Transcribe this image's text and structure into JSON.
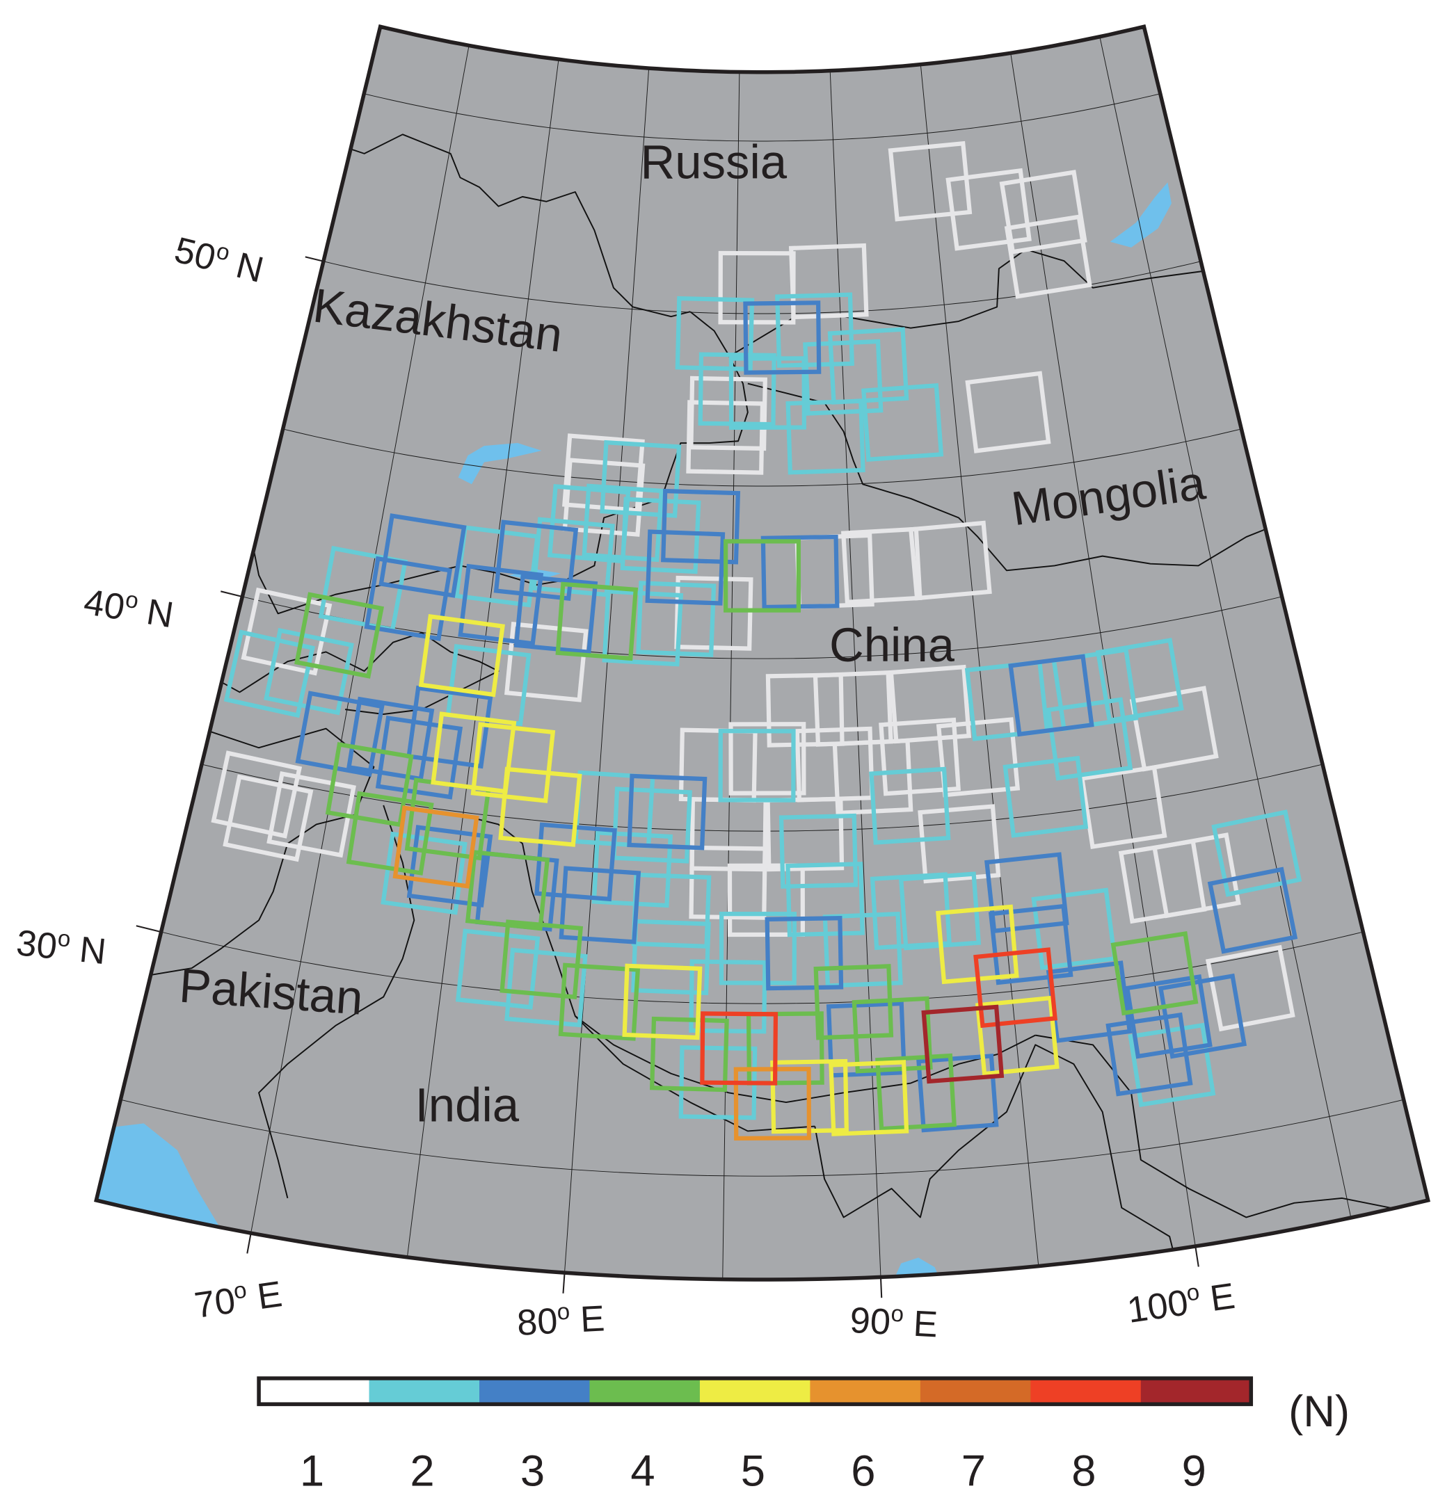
{
  "map": {
    "background_color": "#a7a9ac",
    "water_color": "#6fc0ec",
    "countries": {
      "russia": "Russia",
      "kazakhstan": "Kazakhstan",
      "mongolia": "Mongolia",
      "china": "China",
      "pakistan": "Pakistan",
      "india": "India"
    },
    "lat_labels": [
      {
        "value": 30,
        "text": "30",
        "deg": "o",
        "hemi": " N"
      },
      {
        "value": 40,
        "text": "40",
        "deg": "o",
        "hemi": " N"
      },
      {
        "value": 50,
        "text": "50",
        "deg": "o",
        "hemi": " N"
      }
    ],
    "lon_labels": [
      {
        "value": 70,
        "text": "70",
        "deg": "o",
        "hemi": " E"
      },
      {
        "value": 80,
        "text": "80",
        "deg": "o",
        "hemi": " E"
      },
      {
        "value": 90,
        "text": "90",
        "deg": "o",
        "hemi": " E"
      },
      {
        "value": 100,
        "text": "100",
        "deg": "o",
        "hemi": " E"
      }
    ],
    "graticule": {
      "lon_step": 5,
      "lat_step": 5
    },
    "extent": {
      "lon": [
        65,
        107.5
      ],
      "lat": [
        22,
        57
      ]
    }
  },
  "colorbar": {
    "unit_label": "(N)",
    "levels": [
      {
        "label": "1",
        "fill": "#ffffff",
        "outline": "#e6e6e8"
      },
      {
        "label": "2",
        "fill": "#65ccd6",
        "outline": "#65ccd6"
      },
      {
        "label": "3",
        "fill": "#4480c6",
        "outline": "#4480c6"
      },
      {
        "label": "4",
        "fill": "#6cbd4f",
        "outline": "#6cbd4f"
      },
      {
        "label": "5",
        "fill": "#eeec44",
        "outline": "#eeec44"
      },
      {
        "label": "6",
        "fill": "#e6922e",
        "outline": "#e6922e"
      },
      {
        "label": "7",
        "fill": "#d46a27",
        "outline": "#d46a27"
      },
      {
        "label": "8",
        "fill": "#ee4025",
        "outline": "#ee4025"
      },
      {
        "label": "9",
        "fill": "#a3262b",
        "outline": "#a3262b"
      }
    ]
  },
  "footprints_lon_lat_count": [
    [
      94.9,
      53.6,
      1
    ],
    [
      97.7,
      52.6,
      1
    ],
    [
      100.4,
      52.3,
      1
    ],
    [
      100.3,
      51.0,
      1
    ],
    [
      97.4,
      46.7,
      1
    ],
    [
      86.0,
      50.75,
      1
    ],
    [
      89.5,
      50.9,
      1
    ],
    [
      84.7,
      47.1,
      1
    ],
    [
      84.6,
      46.4,
      1
    ],
    [
      79.25,
      45.2,
      1
    ],
    [
      79.35,
      44.5,
      1
    ],
    [
      89.3,
      42.5,
      1
    ],
    [
      91.3,
      42.6,
      1
    ],
    [
      94.2,
      42.6,
      1
    ],
    [
      84.25,
      41.3,
      1
    ],
    [
      67.05,
      39.3,
      1
    ],
    [
      77.55,
      39.6,
      1
    ],
    [
      67.25,
      34.5,
      1
    ],
    [
      67.85,
      33.9,
      1
    ],
    [
      69.4,
      34.25,
      1
    ],
    [
      87.95,
      38.5,
      1
    ],
    [
      89.85,
      38.5,
      1
    ],
    [
      92.9,
      38.5,
      1
    ],
    [
      92.35,
      37.0,
      1
    ],
    [
      84.55,
      36.9,
      1
    ],
    [
      86.45,
      37.1,
      1
    ],
    [
      89.05,
      36.9,
      1
    ],
    [
      90.5,
      36.5,
      1
    ],
    [
      94.6,
      36.85,
      1
    ],
    [
      102.25,
      36.9,
      1
    ],
    [
      85.0,
      34.9,
      1
    ],
    [
      87.85,
      34.9,
      1
    ],
    [
      93.6,
      34.4,
      1
    ],
    [
      99.85,
      34.9,
      1
    ],
    [
      85.0,
      33.5,
      1
    ],
    [
      86.4,
      33.0,
      1
    ],
    [
      100.85,
      32.6,
      1
    ],
    [
      103.25,
      29.1,
      1
    ],
    [
      102.1,
      32.6,
      1
    ],
    [
      84.0,
      49.4,
      2
    ],
    [
      88.75,
      49.5,
      2
    ],
    [
      85.1,
      47.8,
      2
    ],
    [
      90.0,
      48.1,
      2
    ],
    [
      91.2,
      48.4,
      2
    ],
    [
      92.6,
      46.7,
      2
    ],
    [
      89.1,
      46.4,
      2
    ],
    [
      86.5,
      47.7,
      2
    ],
    [
      80.9,
      45.1,
      2
    ],
    [
      78.8,
      43.7,
      2
    ],
    [
      80.25,
      43.8,
      2
    ],
    [
      81.9,
      43.5,
      2
    ],
    [
      82.7,
      41.1,
      2
    ],
    [
      81.35,
      40.8,
      2
    ],
    [
      69.75,
      40.95,
      2
    ],
    [
      75.1,
      42.2,
      2
    ],
    [
      78.25,
      42.7,
      2
    ],
    [
      66.75,
      38.0,
      2
    ],
    [
      68.25,
      38.3,
      2
    ],
    [
      75.35,
      38.75,
      2
    ],
    [
      80.65,
      35.5,
      2
    ],
    [
      82.1,
      35.1,
      2
    ],
    [
      73.85,
      33.1,
      2
    ],
    [
      76.9,
      30.6,
      2
    ],
    [
      78.65,
      30.2,
      2
    ],
    [
      81.45,
      33.8,
      2
    ],
    [
      82.95,
      32.65,
      2
    ],
    [
      83.0,
      31.3,
      2
    ],
    [
      84.75,
      27.7,
      2
    ],
    [
      85.05,
      30.2,
      2
    ],
    [
      104.4,
      32.9,
      2
    ],
    [
      100.15,
      27.3,
      2
    ],
    [
      95.95,
      38.4,
      2
    ],
    [
      99.45,
      38.4,
      2
    ],
    [
      101.25,
      38.45,
      2
    ],
    [
      98.95,
      37.0,
      2
    ],
    [
      86.05,
      36.9,
      2
    ],
    [
      91.85,
      35.6,
      2
    ],
    [
      97.0,
      35.5,
      2
    ],
    [
      88.35,
      34.4,
      2
    ],
    [
      91.65,
      32.55,
      2
    ],
    [
      88.55,
      33.0,
      2
    ],
    [
      97.45,
      31.6,
      2
    ],
    [
      86.1,
      31.6,
      2
    ],
    [
      89.85,
      31.5,
      2
    ],
    [
      92.7,
      32.5,
      2
    ],
    [
      87.2,
      49.3,
      3
    ],
    [
      83.6,
      43.8,
      3
    ],
    [
      83.0,
      42.6,
      3
    ],
    [
      87.85,
      42.5,
      3
    ],
    [
      77.75,
      41.0,
      3
    ],
    [
      71.95,
      42.2,
      3
    ],
    [
      76.7,
      42.5,
      3
    ],
    [
      71.65,
      40.9,
      3
    ],
    [
      75.45,
      41.1,
      3
    ],
    [
      69.9,
      36.7,
      3
    ],
    [
      71.85,
      36.8,
      3
    ],
    [
      73.05,
      36.4,
      3
    ],
    [
      74.05,
      37.4,
      3
    ],
    [
      82.65,
      35.5,
      3
    ],
    [
      74.75,
      33.4,
      3
    ],
    [
      77.3,
      32.9,
      3
    ],
    [
      79.35,
      33.9,
      3
    ],
    [
      80.35,
      32.7,
      3
    ],
    [
      87.75,
      31.45,
      3
    ],
    [
      89.85,
      28.9,
      3
    ],
    [
      92.85,
      27.2,
      3
    ],
    [
      95.9,
      32.8,
      3
    ],
    [
      95.85,
      31.3,
      3
    ],
    [
      97.65,
      29.45,
      3
    ],
    [
      99.45,
      27.7,
      3
    ],
    [
      100.3,
      28.7,
      3
    ],
    [
      101.45,
      28.55,
      3
    ],
    [
      103.85,
      31.3,
      3
    ],
    [
      97.7,
      38.4,
      3
    ],
    [
      86.25,
      42.4,
      4
    ],
    [
      79.45,
      40.9,
      4
    ],
    [
      69.15,
      39.5,
      4
    ],
    [
      71.35,
      35.4,
      4
    ],
    [
      72.4,
      34.1,
      4
    ],
    [
      74.45,
      34.75,
      4
    ],
    [
      76.95,
      32.9,
      4
    ],
    [
      78.4,
      31.0,
      4
    ],
    [
      80.55,
      29.9,
      4
    ],
    [
      83.75,
      28.5,
      4
    ],
    [
      87.05,
      28.7,
      4
    ],
    [
      89.45,
      30.0,
      4
    ],
    [
      90.75,
      29.0,
      4
    ],
    [
      91.45,
      27.3,
      4
    ],
    [
      100.05,
      30.0,
      4
    ],
    [
      74.15,
      39.5,
      5
    ],
    [
      75.1,
      36.75,
      5
    ],
    [
      76.65,
      36.6,
      5
    ],
    [
      77.85,
      35.4,
      5
    ],
    [
      82.75,
      30.0,
      5
    ],
    [
      87.85,
      27.3,
      5
    ],
    [
      89.85,
      27.2,
      5
    ],
    [
      93.95,
      31.45,
      5
    ],
    [
      95.05,
      28.7,
      5
    ],
    [
      74.15,
      33.9,
      6
    ],
    [
      86.6,
      27.1,
      6
    ],
    [
      85.45,
      28.7,
      8
    ],
    [
      95.15,
      30.1,
      8
    ],
    [
      93.15,
      28.6,
      9
    ]
  ]
}
